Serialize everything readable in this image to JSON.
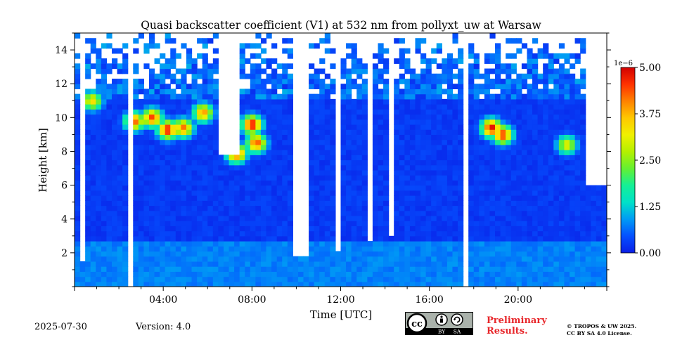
{
  "chart_data": {
    "type": "heatmap",
    "title": "Quasi backscatter coefficient (V1) at 532 nm from pollyxt_uw at Warsaw",
    "xlabel": "Time [UTC]",
    "ylabel": "Height [km]",
    "xlim": [
      0,
      24
    ],
    "ylim": [
      0,
      15
    ],
    "x_ticks": [
      {
        "value": 4,
        "label": "04:00"
      },
      {
        "value": 8,
        "label": "08:00"
      },
      {
        "value": 12,
        "label": "12:00"
      },
      {
        "value": 16,
        "label": "16:00"
      },
      {
        "value": 20,
        "label": "20:00"
      }
    ],
    "y_ticks": [
      {
        "value": 2,
        "label": "2"
      },
      {
        "value": 4,
        "label": "4"
      },
      {
        "value": 6,
        "label": "6"
      },
      {
        "value": 8,
        "label": "8"
      },
      {
        "value": 10,
        "label": "10"
      },
      {
        "value": 12,
        "label": "12"
      },
      {
        "value": 14,
        "label": "14"
      }
    ],
    "colorbar": {
      "min": 0,
      "max": 5,
      "exponent_label": "1e−6",
      "ticks": [
        {
          "value": 0,
          "label": "0.00"
        },
        {
          "value": 1.25,
          "label": "1.25"
        },
        {
          "value": 2.5,
          "label": "2.50"
        },
        {
          "value": 3.75,
          "label": "3.75"
        },
        {
          "value": 5,
          "label": "5.00"
        }
      ],
      "colors": [
        "#0a1ee6",
        "#0550ff",
        "#009bf5",
        "#00e1c8",
        "#14f096",
        "#64f032",
        "#b4f000",
        "#f0f000",
        "#ffc800",
        "#ff8200",
        "#ff3200",
        "#d20000"
      ]
    },
    "field": {
      "background_level": 0.25,
      "boundary_layer": {
        "top_km": 2.7,
        "level": 0.75
      },
      "cirrus_patches": [
        {
          "x": 0.8,
          "y": 11.0,
          "level": 3.4
        },
        {
          "x": 2.7,
          "y": 9.8,
          "level": 4.3
        },
        {
          "x": 3.5,
          "y": 10.0,
          "level": 4.5
        },
        {
          "x": 4.2,
          "y": 9.3,
          "level": 4.8
        },
        {
          "x": 4.9,
          "y": 9.4,
          "level": 4.2
        },
        {
          "x": 5.8,
          "y": 10.3,
          "level": 4.0
        },
        {
          "x": 7.3,
          "y": 7.9,
          "level": 4.6
        },
        {
          "x": 8.0,
          "y": 9.6,
          "level": 4.9
        },
        {
          "x": 8.2,
          "y": 8.5,
          "level": 4.4
        },
        {
          "x": 18.8,
          "y": 9.4,
          "level": 4.9
        },
        {
          "x": 19.3,
          "y": 9.0,
          "level": 4.6
        },
        {
          "x": 22.2,
          "y": 8.4,
          "level": 3.2
        }
      ],
      "signal_gaps": [
        {
          "x0": 0.25,
          "x1": 0.55,
          "y0": 1.45
        },
        {
          "x0": 2.5,
          "x1": 2.65,
          "y0": 0
        },
        {
          "x0": 6.4,
          "x1": 7.5,
          "y0": 7.7
        },
        {
          "x0": 9.9,
          "x1": 10.6,
          "y0": 1.8
        },
        {
          "x0": 11.8,
          "x1": 12.0,
          "y0": 2.0
        },
        {
          "x0": 12.4,
          "x1": 12.5,
          "y0": 0
        },
        {
          "x0": 13.3,
          "x1": 13.5,
          "y0": 2.8
        },
        {
          "x0": 14.2,
          "x1": 14.4,
          "y0": 3.0
        },
        {
          "x0": 17.5,
          "x1": 17.65,
          "y0": 0
        },
        {
          "x0": 23.1,
          "x1": 24.0,
          "y0": 6.0
        }
      ]
    }
  },
  "footer": {
    "date": "2025-07-30",
    "version": "Version: 4.0",
    "license_badge": {
      "cc": "cc",
      "by": "BY",
      "sa": "SA"
    },
    "preliminary_line1": "Preliminary",
    "preliminary_line2": "Results.",
    "copyright_line1": "© TROPOS & UW 2025.",
    "copyright_line2": "CC BY SA 4.0 License."
  }
}
